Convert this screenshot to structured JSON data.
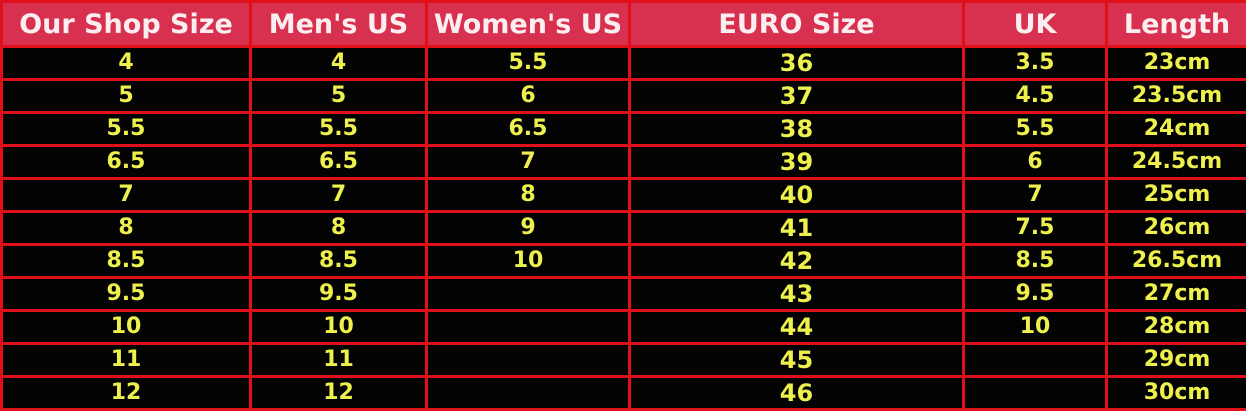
{
  "table": {
    "headers": [
      "Our Shop Size",
      "Men's US",
      "Women's US",
      "EURO Size",
      "UK",
      "Length"
    ],
    "rows": [
      [
        "4",
        "4",
        "5.5",
        "36",
        "3.5",
        "23cm"
      ],
      [
        "5",
        "5",
        "6",
        "37",
        "4.5",
        "23.5cm"
      ],
      [
        "5.5",
        "5.5",
        "6.5",
        "38",
        "5.5",
        "24cm"
      ],
      [
        "6.5",
        "6.5",
        "7",
        "39",
        "6",
        "24.5cm"
      ],
      [
        "7",
        "7",
        "8",
        "40",
        "7",
        "25cm"
      ],
      [
        "8",
        "8",
        "9",
        "41",
        "7.5",
        "26cm"
      ],
      [
        "8.5",
        "8.5",
        "10",
        "42",
        "8.5",
        "26.5cm"
      ],
      [
        "9.5",
        "9.5",
        "",
        "43",
        "9.5",
        "27cm"
      ],
      [
        "10",
        "10",
        "",
        "44",
        "10",
        "28cm"
      ],
      [
        "11",
        "11",
        "",
        "45",
        "",
        "29cm"
      ],
      [
        "12",
        "12",
        "",
        "46",
        "",
        "30cm"
      ]
    ]
  },
  "colors": {
    "header_bg": "#d8314f",
    "border": "#e0101a",
    "cell_text": "#eef04e",
    "header_text": "#fbeef0",
    "cell_bg": "#030303"
  }
}
